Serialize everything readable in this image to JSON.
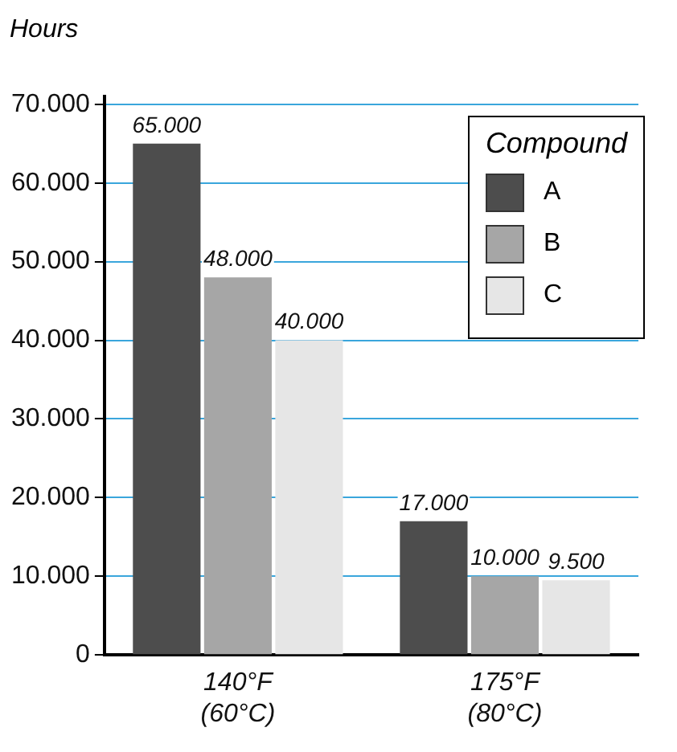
{
  "chart_data": {
    "type": "bar",
    "ylabel": "Hours",
    "legend_title": "Compound",
    "categories": [
      "140°F\n(60°C)",
      "175°F\n(80°C)"
    ],
    "series": [
      {
        "name": "A",
        "color": "#4d4d4d",
        "values": [
          65000,
          17000
        ],
        "value_labels": [
          "65.000",
          "17.000"
        ]
      },
      {
        "name": "B",
        "color": "#a6a6a6",
        "values": [
          48000,
          10000
        ],
        "value_labels": [
          "48.000",
          "10.000"
        ]
      },
      {
        "name": "C",
        "color": "#e6e6e6",
        "values": [
          40000,
          9500
        ],
        "value_labels": [
          "40.000",
          "9.500"
        ]
      }
    ],
    "ylim": [
      0,
      71000
    ],
    "yticks": [
      0,
      {
        "value": 10000,
        "label": "10.000"
      },
      {
        "value": 20000,
        "label": "20.000"
      },
      {
        "value": 30000,
        "label": "30.000"
      },
      {
        "value": 40000,
        "label": "40.000"
      },
      {
        "value": 50000,
        "label": "50.000"
      },
      {
        "value": 60000,
        "label": "60.000"
      },
      {
        "value": 70000,
        "label": "70.000"
      }
    ],
    "grid": "y",
    "legend": "top right"
  }
}
